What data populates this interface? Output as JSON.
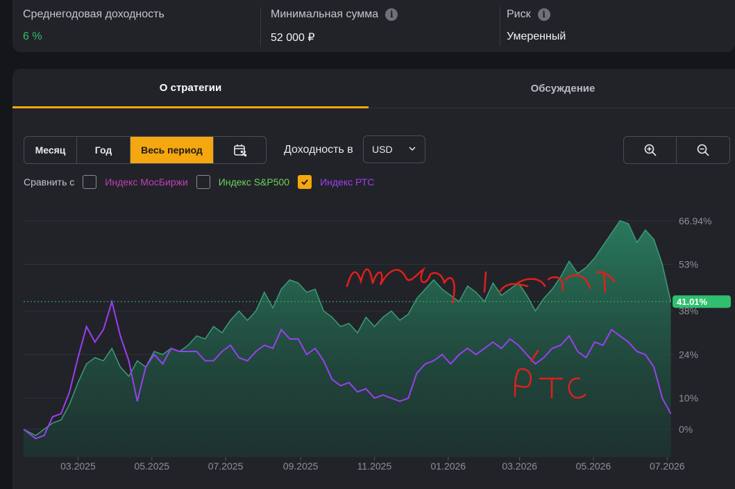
{
  "stats": [
    {
      "label": "Среднегодовая доходность",
      "value": "6 %",
      "info": false
    },
    {
      "label": "Минимальная сумма",
      "value": "52 000 ₽",
      "info": true
    },
    {
      "label": "Риск",
      "value": "Умеренный",
      "info": true
    }
  ],
  "tabs": [
    {
      "label": "О стратегии",
      "active": true
    },
    {
      "label": "Обсуждение",
      "active": false
    }
  ],
  "period_buttons": [
    {
      "label": "Месяц"
    },
    {
      "label": "Год"
    },
    {
      "label": "Весь период",
      "active": true
    },
    {
      "icon": "calendar-percent-icon"
    }
  ],
  "currency": {
    "label": "Доходность в",
    "selected": "USD"
  },
  "zoom": {
    "in_icon": "zoom-in-icon",
    "out_icon": "zoom-out-icon"
  },
  "compare": {
    "label": "Сравнить с",
    "items": [
      {
        "label": "Индекс МосБиржи",
        "checked": false,
        "color": "#c03fb6"
      },
      {
        "label": "Индекс S&P500",
        "checked": false,
        "color": "#6bd35a"
      },
      {
        "label": "Индекс РТС",
        "checked": true,
        "color": "#9b3ff2"
      }
    ]
  },
  "colors": {
    "accent": "#f5a70f",
    "strategy": "#2a7d5f",
    "rts": "#9b3ff2",
    "positive": "#2fbf6e",
    "annotation": "#e0201b"
  },
  "chart_data": {
    "type": "area",
    "x_ticks": [
      "03.2025",
      "05.2025",
      "07.2025",
      "09.2025",
      "11.2025",
      "01.2026",
      "03.2026",
      "05.2026",
      "07.2026"
    ],
    "y_ticks": [
      "66.94%",
      "53%",
      "38%",
      "24%",
      "10%",
      "0%"
    ],
    "ylim": [
      -5,
      70
    ],
    "current_label": "41.01%",
    "annotations": [
      "Мой страт.",
      "РТС"
    ],
    "series": [
      {
        "name": "",
        "color": "#2a7d5f",
        "points": [
          [
            "2025-01-15",
            0
          ],
          [
            "2025-01-25",
            -2
          ],
          [
            "2025-02-01",
            0
          ],
          [
            "2025-02-08",
            2
          ],
          [
            "2025-02-15",
            3
          ],
          [
            "2025-02-22",
            8
          ],
          [
            "2025-03-01",
            15
          ],
          [
            "2025-03-08",
            21
          ],
          [
            "2025-03-15",
            23
          ],
          [
            "2025-03-22",
            22
          ],
          [
            "2025-03-29",
            26
          ],
          [
            "2025-04-05",
            20
          ],
          [
            "2025-04-12",
            17
          ],
          [
            "2025-04-19",
            22
          ],
          [
            "2025-04-26",
            20
          ],
          [
            "2025-05-03",
            25
          ],
          [
            "2025-05-10",
            24
          ],
          [
            "2025-05-17",
            26
          ],
          [
            "2025-05-24",
            25
          ],
          [
            "2025-05-31",
            27
          ],
          [
            "2025-06-07",
            30
          ],
          [
            "2025-06-14",
            29
          ],
          [
            "2025-06-21",
            33
          ],
          [
            "2025-06-28",
            31
          ],
          [
            "2025-07-05",
            35
          ],
          [
            "2025-07-12",
            38
          ],
          [
            "2025-07-19",
            35
          ],
          [
            "2025-07-26",
            38
          ],
          [
            "2025-08-02",
            44
          ],
          [
            "2025-08-09",
            39
          ],
          [
            "2025-08-16",
            45
          ],
          [
            "2025-08-23",
            48
          ],
          [
            "2025-08-30",
            47
          ],
          [
            "2025-09-06",
            44
          ],
          [
            "2025-09-13",
            45
          ],
          [
            "2025-09-20",
            38
          ],
          [
            "2025-09-27",
            36
          ],
          [
            "2025-10-04",
            33
          ],
          [
            "2025-10-11",
            34
          ],
          [
            "2025-10-18",
            31
          ],
          [
            "2025-10-25",
            36
          ],
          [
            "2025-11-01",
            33
          ],
          [
            "2025-11-08",
            36
          ],
          [
            "2025-11-15",
            38
          ],
          [
            "2025-11-22",
            35
          ],
          [
            "2025-11-29",
            37
          ],
          [
            "2025-12-06",
            42
          ],
          [
            "2025-12-13",
            45
          ],
          [
            "2025-12-20",
            48
          ],
          [
            "2025-12-27",
            45
          ],
          [
            "2026-01-03",
            43
          ],
          [
            "2026-01-10",
            41
          ],
          [
            "2026-01-17",
            46
          ],
          [
            "2026-01-24",
            44
          ],
          [
            "2026-01-31",
            41
          ],
          [
            "2026-02-07",
            47
          ],
          [
            "2026-02-14",
            43
          ],
          [
            "2026-02-21",
            45
          ],
          [
            "2026-02-28",
            47
          ],
          [
            "2026-03-07",
            43
          ],
          [
            "2026-03-14",
            38
          ],
          [
            "2026-03-21",
            42
          ],
          [
            "2026-03-28",
            45
          ],
          [
            "2026-04-04",
            49
          ],
          [
            "2026-04-11",
            54
          ],
          [
            "2026-04-18",
            50
          ],
          [
            "2026-04-25",
            52
          ],
          [
            "2026-05-02",
            55
          ],
          [
            "2026-05-09",
            59
          ],
          [
            "2026-05-16",
            63
          ],
          [
            "2026-05-23",
            67
          ],
          [
            "2026-05-30",
            66
          ],
          [
            "2026-06-06",
            60
          ],
          [
            "2026-06-13",
            64
          ],
          [
            "2026-06-20",
            61
          ],
          [
            "2026-06-27",
            53
          ],
          [
            "2026-07-04",
            41
          ]
        ]
      },
      {
        "name": "Индекс РТС",
        "color": "#9b3ff2",
        "points": [
          [
            "2025-01-15",
            0
          ],
          [
            "2025-01-25",
            -3
          ],
          [
            "2025-02-01",
            -2
          ],
          [
            "2025-02-08",
            4
          ],
          [
            "2025-02-15",
            5
          ],
          [
            "2025-02-22",
            12
          ],
          [
            "2025-03-01",
            23
          ],
          [
            "2025-03-08",
            33
          ],
          [
            "2025-03-15",
            28
          ],
          [
            "2025-03-22",
            32
          ],
          [
            "2025-03-29",
            41
          ],
          [
            "2025-04-05",
            30
          ],
          [
            "2025-04-12",
            22
          ],
          [
            "2025-04-19",
            9
          ],
          [
            "2025-04-26",
            20
          ],
          [
            "2025-05-03",
            24
          ],
          [
            "2025-05-10",
            21
          ],
          [
            "2025-05-17",
            26
          ],
          [
            "2025-05-24",
            25
          ],
          [
            "2025-05-31",
            25
          ],
          [
            "2025-06-07",
            25
          ],
          [
            "2025-06-14",
            22
          ],
          [
            "2025-06-21",
            22
          ],
          [
            "2025-06-28",
            25
          ],
          [
            "2025-07-05",
            27
          ],
          [
            "2025-07-12",
            23
          ],
          [
            "2025-07-19",
            22
          ],
          [
            "2025-07-26",
            25
          ],
          [
            "2025-08-02",
            27
          ],
          [
            "2025-08-09",
            26
          ],
          [
            "2025-08-16",
            32
          ],
          [
            "2025-08-23",
            29
          ],
          [
            "2025-08-30",
            29
          ],
          [
            "2025-09-06",
            24
          ],
          [
            "2025-09-13",
            26
          ],
          [
            "2025-09-20",
            22
          ],
          [
            "2025-09-27",
            16
          ],
          [
            "2025-10-04",
            14
          ],
          [
            "2025-10-11",
            15
          ],
          [
            "2025-10-18",
            12
          ],
          [
            "2025-10-25",
            13
          ],
          [
            "2025-11-01",
            10
          ],
          [
            "2025-11-08",
            11
          ],
          [
            "2025-11-15",
            10
          ],
          [
            "2025-11-22",
            9
          ],
          [
            "2025-11-29",
            10
          ],
          [
            "2025-12-06",
            18
          ],
          [
            "2025-12-13",
            21
          ],
          [
            "2025-12-20",
            22
          ],
          [
            "2025-12-27",
            24
          ],
          [
            "2026-01-03",
            21
          ],
          [
            "2026-01-10",
            24
          ],
          [
            "2026-01-17",
            26
          ],
          [
            "2026-01-24",
            24
          ],
          [
            "2026-01-31",
            26
          ],
          [
            "2026-02-07",
            28
          ],
          [
            "2026-02-14",
            26
          ],
          [
            "2026-02-21",
            29
          ],
          [
            "2026-02-28",
            27
          ],
          [
            "2026-03-07",
            24
          ],
          [
            "2026-03-14",
            21
          ],
          [
            "2026-03-21",
            23
          ],
          [
            "2026-03-28",
            26
          ],
          [
            "2026-04-04",
            27
          ],
          [
            "2026-04-11",
            30
          ],
          [
            "2026-04-18",
            25
          ],
          [
            "2026-04-25",
            23
          ],
          [
            "2026-05-02",
            28
          ],
          [
            "2026-05-09",
            27
          ],
          [
            "2026-05-16",
            32
          ],
          [
            "2026-05-23",
            30
          ],
          [
            "2026-05-30",
            28
          ],
          [
            "2026-06-06",
            25
          ],
          [
            "2026-06-13",
            24
          ],
          [
            "2026-06-20",
            20
          ],
          [
            "2026-06-27",
            10
          ],
          [
            "2026-07-04",
            5
          ]
        ]
      }
    ]
  }
}
